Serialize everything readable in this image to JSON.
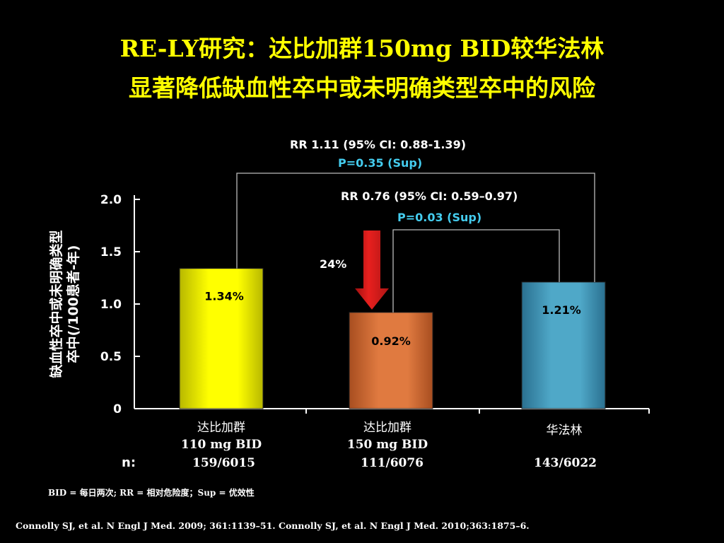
{
  "title": {
    "line1": "RE-LY研究：达比加群150mg BID较华法林",
    "line2": "显著降低缺血性卒中或未明确类型卒中的风险"
  },
  "colors": {
    "title": "#ffff00",
    "pvalue": "#44ccee",
    "arrow": "#e8201e"
  },
  "chart_data": {
    "type": "bar",
    "ylabel_line1": "缺血性卒中或未明确类型",
    "ylabel_line2": "卒中(/100患者-年)",
    "ylim": [
      0,
      2.0
    ],
    "yticks": [
      "0",
      "0.5",
      "1.0",
      "1.5",
      "2.0"
    ],
    "categories": [
      {
        "name": "达比加群",
        "dose": "110 mg BID",
        "n": "159/6015",
        "value": 1.34,
        "label": "1.34%",
        "color": "#ffff00",
        "color_dark": "#b8b800"
      },
      {
        "name": "达比加群",
        "dose": "150 mg BID",
        "n": "111/6076",
        "value": 0.92,
        "label": "0.92%",
        "color": "#e07a40",
        "color_dark": "#a84e20"
      },
      {
        "name": "华法林",
        "dose": "",
        "n": "143/6022",
        "value": 1.21,
        "label": "1.21%",
        "color": "#4fa8c8",
        "color_dark": "#2a7090"
      }
    ],
    "n_label": "n:",
    "annotations": {
      "rr1": "RR 1.11 (95% CI: 0.88-1.39)",
      "p1": "P=0.35 (Sup)",
      "rr2": "RR 0.76 (95% CI: 0.59–0.97)",
      "p2": "P=0.03 (Sup)",
      "reduction": "24%"
    }
  },
  "footnote": "BID = 每日两次; RR = 相对危险度；Sup = 优效性",
  "reference": "Connolly SJ, et al. N Engl J Med. 2009; 361:1139–51. Connolly SJ, et al. N Engl J Med. 2010;363:1875–6."
}
